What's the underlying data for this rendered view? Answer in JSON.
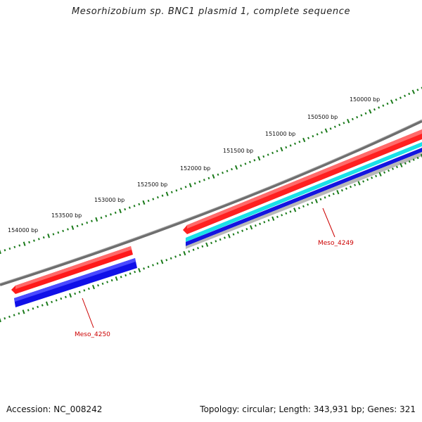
{
  "title": "Mesorhizobium sp. BNC1 plasmid 1, complete sequence",
  "footer": {
    "accession": "Accession: NC_008242",
    "summary": "Topology: circular; Length: 343,931 bp; Genes: 321"
  },
  "colors": {
    "backbone": "#808080",
    "forward_gene": "#ff0000",
    "reverse_gene": "#0000ff",
    "cds_feature": "#00e5ee",
    "ruler_tick": "#1a7a1a",
    "label": "#cc0000"
  },
  "scale_labels": [
    "150000 bp",
    "150500 bp",
    "151000 bp",
    "151500 bp",
    "152000 bp",
    "152500 bp",
    "153000 bp",
    "153500 bp",
    "154000 bp"
  ],
  "genes": [
    {
      "label": "Meso_4249"
    },
    {
      "label": "Meso_4250"
    }
  ]
}
